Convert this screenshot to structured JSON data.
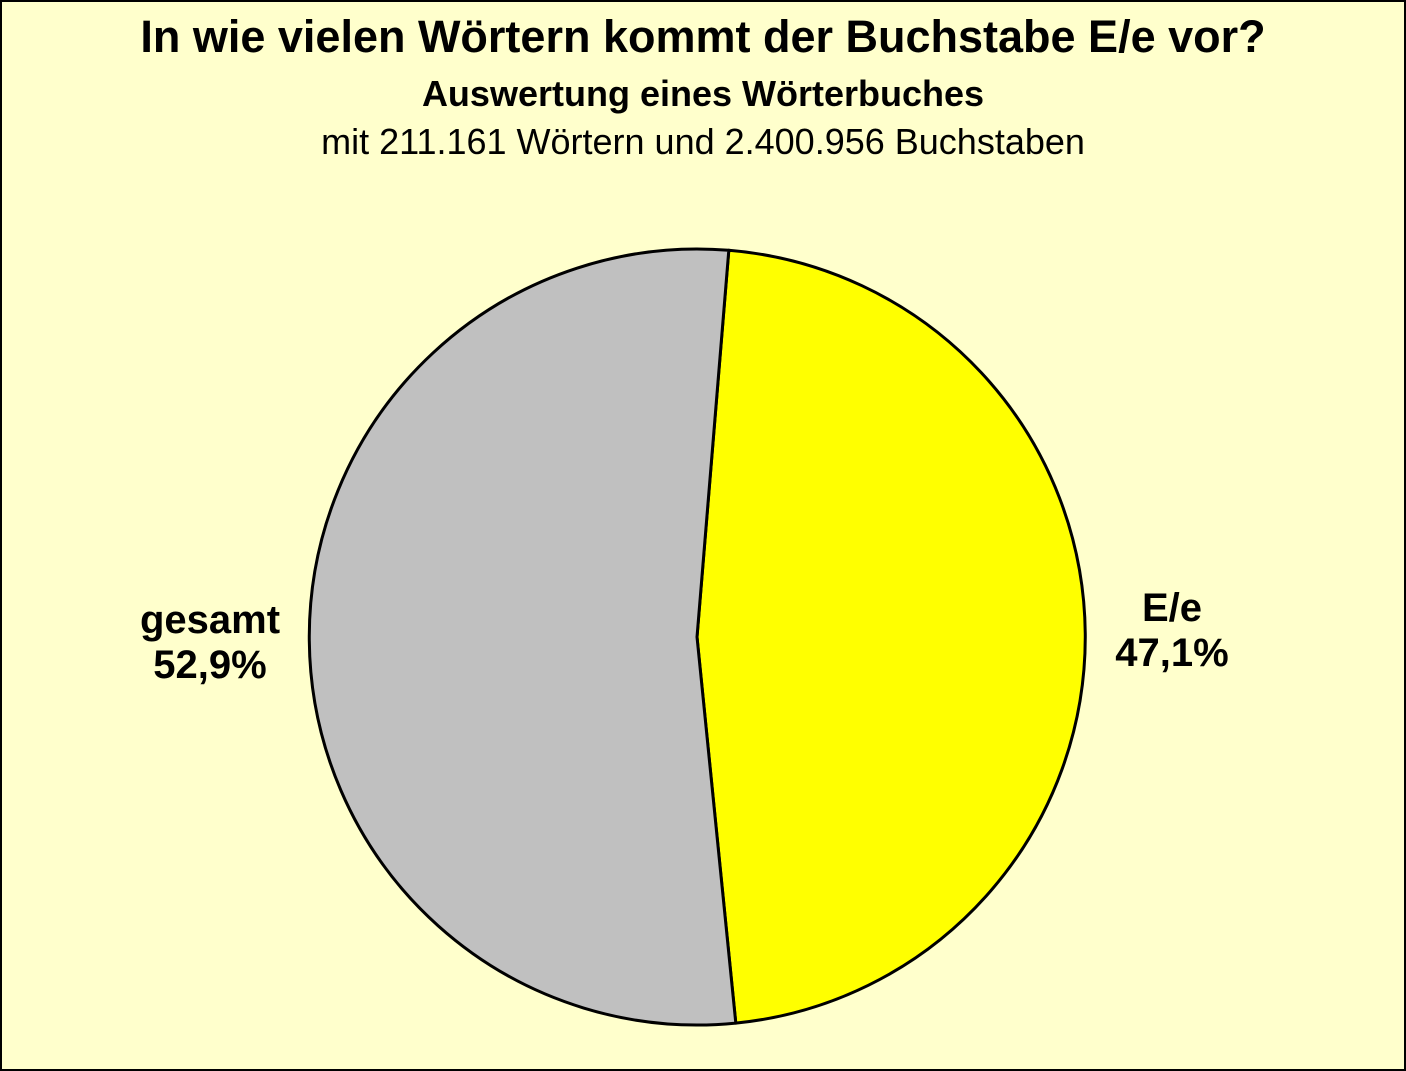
{
  "page": {
    "background_color": "#FFFFCC",
    "frame_color": "#000000"
  },
  "header": {
    "title": "In wie vielen Wörtern kommt der Buchstabe E/e vor?",
    "subtitle": "Auswertung eines Wörterbuches",
    "note": "mit 211.161 Wörtern und 2.400.956 Buchstaben"
  },
  "chart_data": {
    "type": "pie",
    "title": "In wie vielen Wörtern kommt der Buchstabe E/e vor?",
    "subtitle": "Auswertung eines Wörterbuches",
    "note": "mit 211.161 Wörtern und 2.400.956 Buchstaben",
    "slices": [
      {
        "label": "E/e",
        "value": 47.1,
        "display": "47,1%",
        "color": "#FFFF00"
      },
      {
        "label": "gesamt",
        "value": 52.9,
        "display": "52,9%",
        "color": "#C0C0C0"
      }
    ],
    "start_angle_deg": 4.7,
    "direction": "clockwise",
    "outline_color": "#000000",
    "legend_position": "none",
    "labels_outside": true
  }
}
